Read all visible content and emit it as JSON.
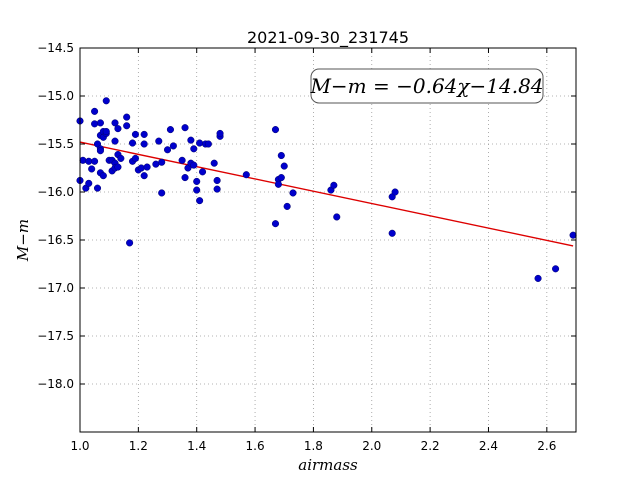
{
  "chart_data": {
    "type": "scatter",
    "title": "2021-09-30_231745",
    "xlabel": "airmass",
    "ylabel": "M−m",
    "xlim": [
      1.0,
      2.7
    ],
    "ylim": [
      -18.5,
      -14.5
    ],
    "y_inverted": true,
    "grid": true,
    "x_ticks": [
      1.0,
      1.2,
      1.4,
      1.6,
      1.8,
      2.0,
      2.2,
      2.4,
      2.6
    ],
    "x_tick_labels": [
      "1.0",
      "1.2",
      "1.4",
      "1.6",
      "1.8",
      "2.0",
      "2.2",
      "2.4",
      "2.6"
    ],
    "y_ticks": [
      -14.5,
      -15.0,
      -15.5,
      -16.0,
      -16.5,
      -17.0,
      -17.5,
      -18.0
    ],
    "y_tick_labels": [
      "−14.5",
      "−15.0",
      "−15.5",
      "−16.0",
      "−16.5",
      "−17.0",
      "−17.5",
      "−18.0"
    ],
    "annotation": "M−m = −0.64χ−14.84",
    "point_color": "#0000cc",
    "fit_color": "#dd0000",
    "fit": {
      "slope": -0.64,
      "intercept": -14.84,
      "x_range": [
        1.0,
        2.69
      ]
    },
    "points": [
      [
        1.0,
        -15.26
      ],
      [
        1.0,
        -15.88
      ],
      [
        1.01,
        -15.67
      ],
      [
        1.02,
        -15.96
      ],
      [
        1.03,
        -15.68
      ],
      [
        1.03,
        -15.91
      ],
      [
        1.04,
        -15.76
      ],
      [
        1.05,
        -15.16
      ],
      [
        1.05,
        -15.29
      ],
      [
        1.05,
        -15.68
      ],
      [
        1.06,
        -15.5
      ],
      [
        1.06,
        -15.96
      ],
      [
        1.07,
        -15.41
      ],
      [
        1.07,
        -15.55
      ],
      [
        1.07,
        -15.57
      ],
      [
        1.07,
        -15.8
      ],
      [
        1.07,
        -15.28
      ],
      [
        1.08,
        -15.43
      ],
      [
        1.08,
        -15.37
      ],
      [
        1.08,
        -15.83
      ],
      [
        1.09,
        -15.05
      ],
      [
        1.09,
        -15.39
      ],
      [
        1.09,
        -15.37
      ],
      [
        1.1,
        -15.67
      ],
      [
        1.11,
        -15.67
      ],
      [
        1.11,
        -15.78
      ],
      [
        1.12,
        -15.28
      ],
      [
        1.12,
        -15.47
      ],
      [
        1.12,
        -15.7
      ],
      [
        1.12,
        -15.75
      ],
      [
        1.13,
        -15.34
      ],
      [
        1.13,
        -15.61
      ],
      [
        1.13,
        -15.74
      ],
      [
        1.14,
        -15.65
      ],
      [
        1.16,
        -15.22
      ],
      [
        1.16,
        -15.31
      ],
      [
        1.17,
        -16.53
      ],
      [
        1.18,
        -15.49
      ],
      [
        1.18,
        -15.68
      ],
      [
        1.19,
        -15.4
      ],
      [
        1.19,
        -15.65
      ],
      [
        1.2,
        -15.77
      ],
      [
        1.21,
        -15.75
      ],
      [
        1.22,
        -15.4
      ],
      [
        1.22,
        -15.5
      ],
      [
        1.22,
        -15.83
      ],
      [
        1.23,
        -15.74
      ],
      [
        1.26,
        -15.71
      ],
      [
        1.27,
        -15.47
      ],
      [
        1.28,
        -15.69
      ],
      [
        1.28,
        -16.01
      ],
      [
        1.3,
        -15.56
      ],
      [
        1.31,
        -15.35
      ],
      [
        1.32,
        -15.52
      ],
      [
        1.35,
        -15.67
      ],
      [
        1.36,
        -15.33
      ],
      [
        1.36,
        -15.85
      ],
      [
        1.37,
        -15.75
      ],
      [
        1.38,
        -15.46
      ],
      [
        1.38,
        -15.7
      ],
      [
        1.39,
        -15.55
      ],
      [
        1.39,
        -15.72
      ],
      [
        1.4,
        -15.98
      ],
      [
        1.4,
        -15.89
      ],
      [
        1.41,
        -16.09
      ],
      [
        1.41,
        -15.49
      ],
      [
        1.42,
        -15.79
      ],
      [
        1.43,
        -15.5
      ],
      [
        1.44,
        -15.5
      ],
      [
        1.46,
        -15.7
      ],
      [
        1.47,
        -15.97
      ],
      [
        1.47,
        -15.88
      ],
      [
        1.48,
        -15.42
      ],
      [
        1.48,
        -15.39
      ],
      [
        1.57,
        -15.82
      ],
      [
        1.67,
        -15.35
      ],
      [
        1.67,
        -16.33
      ],
      [
        1.68,
        -15.87
      ],
      [
        1.68,
        -15.92
      ],
      [
        1.69,
        -15.62
      ],
      [
        1.69,
        -15.85
      ],
      [
        1.7,
        -15.73
      ],
      [
        1.71,
        -16.15
      ],
      [
        1.73,
        -16.01
      ],
      [
        1.86,
        -15.98
      ],
      [
        1.87,
        -15.93
      ],
      [
        1.88,
        -16.26
      ],
      [
        2.07,
        -16.43
      ],
      [
        2.07,
        -16.05
      ],
      [
        2.08,
        -16.0
      ],
      [
        2.57,
        -16.9
      ],
      [
        2.63,
        -16.8
      ],
      [
        2.69,
        -16.45
      ]
    ]
  }
}
